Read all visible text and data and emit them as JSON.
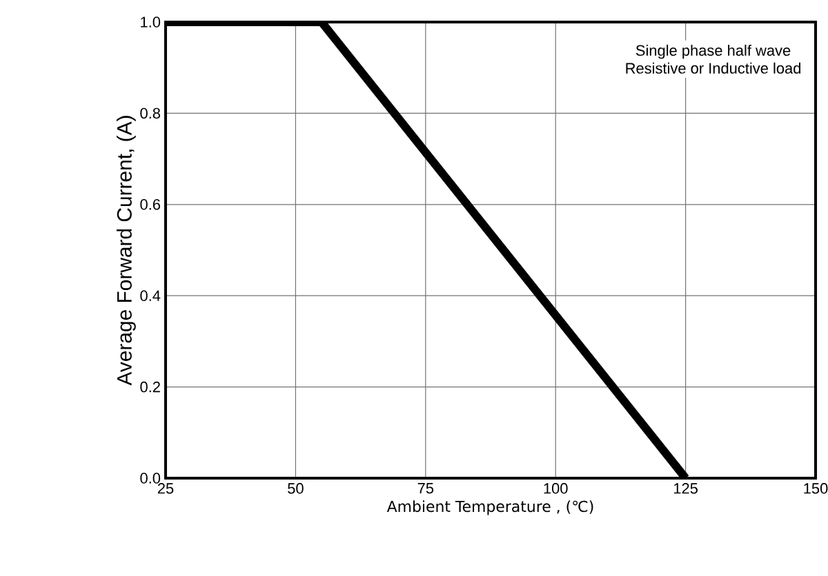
{
  "chart_data": {
    "type": "line",
    "xlabel": "Ambient Temperature , (℃)",
    "ylabel": "Average Forward Current, (A)",
    "annotations": [
      "Single phase half wave",
      "Resistive or Inductive load"
    ],
    "x": [
      25,
      55,
      125
    ],
    "values": [
      1.0,
      1.0,
      0.0
    ],
    "color": "#000000",
    "xlim": [
      25,
      150
    ],
    "ylim": [
      0,
      1
    ],
    "xticks": [
      25,
      50,
      75,
      100,
      125,
      150
    ],
    "yticks": [
      {
        "value": 0,
        "label": "0.0"
      },
      {
        "value": 0.2,
        "label": "0.2"
      },
      {
        "value": 0.4,
        "label": "0.4"
      },
      {
        "value": 0.6,
        "label": "0.6"
      },
      {
        "value": 0.8,
        "label": "0.8"
      },
      {
        "value": 1,
        "label": "1.0"
      }
    ],
    "grid": true
  }
}
